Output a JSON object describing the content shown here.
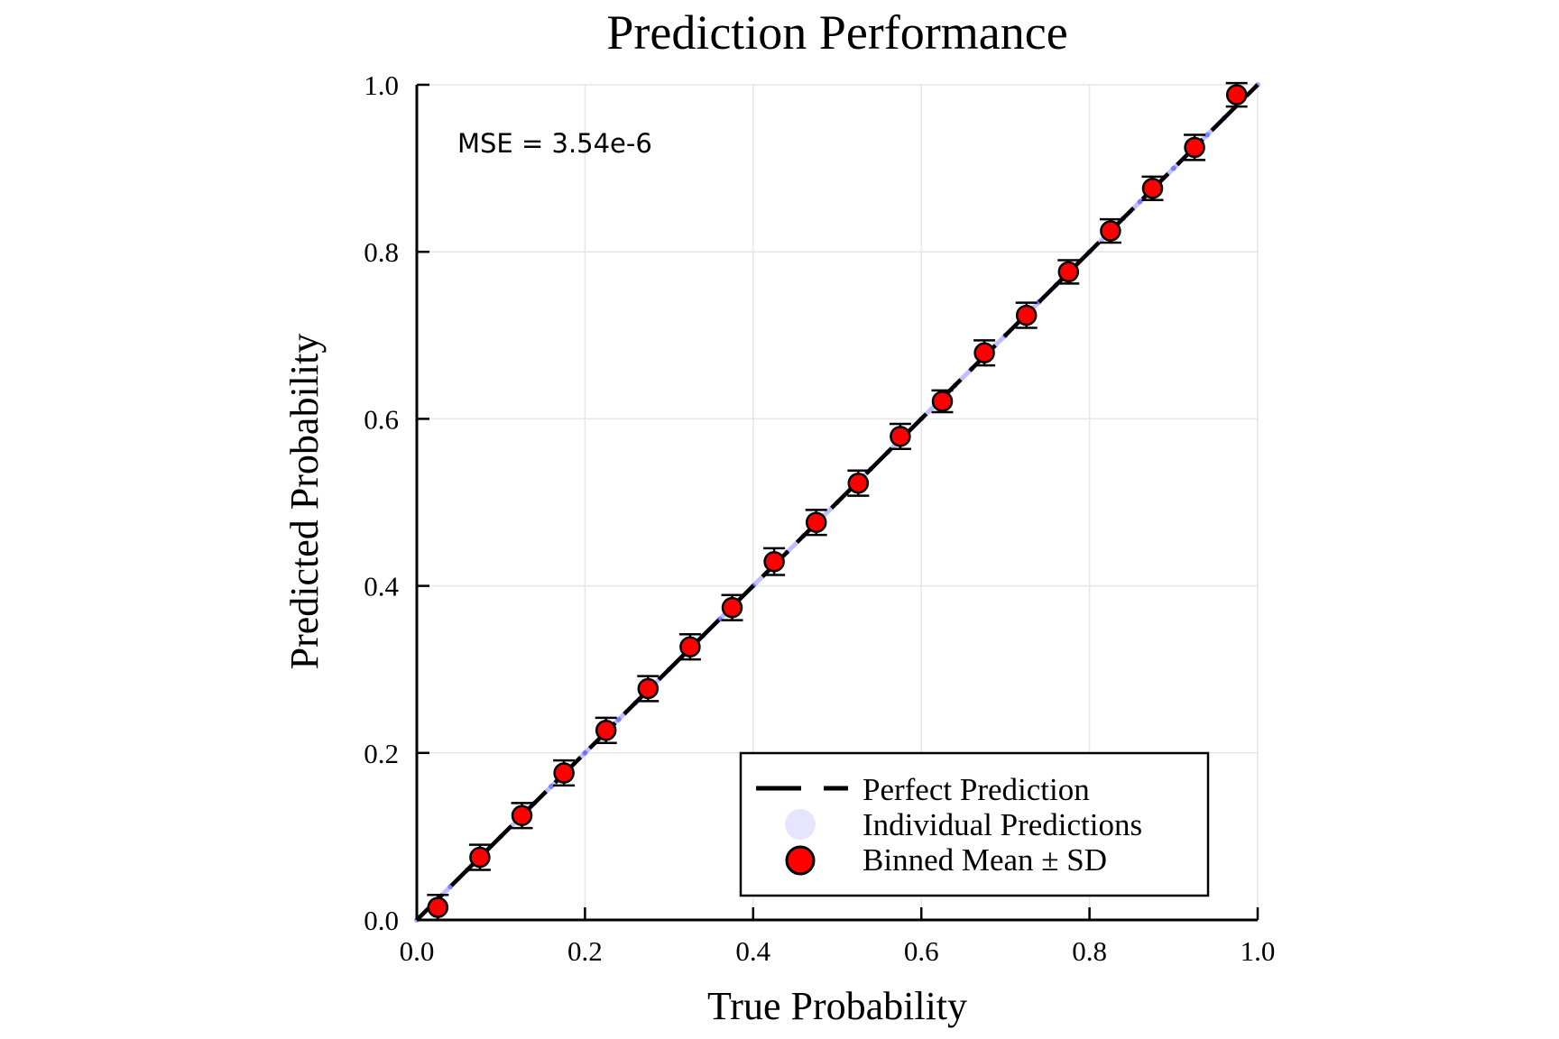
{
  "chart_data": {
    "type": "scatter",
    "title": "Prediction Performance",
    "xlabel": "True Probability",
    "ylabel": "Predicted Probability",
    "xlim": [
      0,
      1
    ],
    "ylim": [
      0,
      1
    ],
    "xticks": [
      "0.0",
      "0.2",
      "0.4",
      "0.6",
      "0.8",
      "1.0"
    ],
    "yticks": [
      "0.0",
      "0.2",
      "0.4",
      "0.6",
      "0.8",
      "1.0"
    ],
    "grid": true,
    "annotation": "MSE = 3.54e-6",
    "legend_position": "bottom-right",
    "series": [
      {
        "name": "Perfect Prediction",
        "type": "line",
        "style": "dashed",
        "color": "#000000",
        "x": [
          0,
          1
        ],
        "y": [
          0,
          1
        ]
      },
      {
        "name": "Individual Predictions",
        "type": "scatter",
        "color": "#0000ff",
        "x": [
          0.0,
          0.02,
          0.04,
          0.06,
          0.08,
          0.1,
          0.12,
          0.14,
          0.16,
          0.18,
          0.2,
          0.22,
          0.24,
          0.26,
          0.28,
          0.3,
          0.32,
          0.34,
          0.36,
          0.38,
          0.4,
          0.42,
          0.44,
          0.46,
          0.48,
          0.5,
          0.52,
          0.54,
          0.56,
          0.58,
          0.6,
          0.62,
          0.64,
          0.66,
          0.68,
          0.7,
          0.72,
          0.74,
          0.76,
          0.78,
          0.8,
          0.82,
          0.84,
          0.86,
          0.88,
          0.9,
          0.92,
          0.94,
          0.96,
          0.98,
          1.0
        ],
        "y": [
          0.0,
          0.02,
          0.04,
          0.06,
          0.08,
          0.1,
          0.12,
          0.14,
          0.16,
          0.18,
          0.2,
          0.22,
          0.24,
          0.26,
          0.28,
          0.3,
          0.32,
          0.34,
          0.36,
          0.38,
          0.4,
          0.42,
          0.44,
          0.46,
          0.48,
          0.5,
          0.52,
          0.54,
          0.56,
          0.58,
          0.6,
          0.62,
          0.64,
          0.66,
          0.68,
          0.7,
          0.72,
          0.74,
          0.76,
          0.78,
          0.8,
          0.82,
          0.84,
          0.86,
          0.88,
          0.9,
          0.92,
          0.94,
          0.96,
          0.98,
          1.0
        ]
      },
      {
        "name": "Binned Mean ± SD",
        "type": "errorbar",
        "color": "#ff0000",
        "x": [
          0.025,
          0.075,
          0.125,
          0.175,
          0.225,
          0.275,
          0.325,
          0.375,
          0.425,
          0.475,
          0.525,
          0.575,
          0.625,
          0.675,
          0.725,
          0.775,
          0.825,
          0.875,
          0.925,
          0.975
        ],
        "y": [
          0.015,
          0.075,
          0.125,
          0.176,
          0.227,
          0.277,
          0.327,
          0.374,
          0.429,
          0.476,
          0.523,
          0.579,
          0.621,
          0.679,
          0.724,
          0.776,
          0.825,
          0.876,
          0.925,
          0.988
        ],
        "sd": [
          0.015,
          0.015,
          0.015,
          0.015,
          0.015,
          0.015,
          0.015,
          0.015,
          0.016,
          0.015,
          0.015,
          0.015,
          0.013,
          0.015,
          0.015,
          0.014,
          0.014,
          0.014,
          0.015,
          0.014
        ]
      }
    ]
  }
}
